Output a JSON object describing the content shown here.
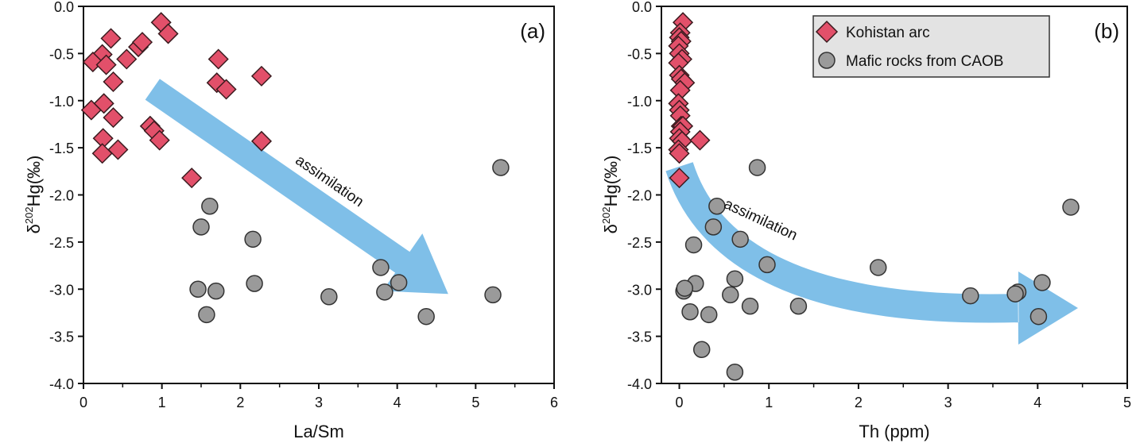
{
  "colors": {
    "kohistan_fill": "#e2506a",
    "kohistan_stroke": "#3a1a1e",
    "caob_fill": "#9a9a9a",
    "caob_stroke": "#333333",
    "arrow": "#7fbfe8",
    "legend_bg": "#e3e3e3"
  },
  "legend": {
    "items": [
      {
        "label": "Kohistan arc",
        "marker": "diamond"
      },
      {
        "label": "Mafic rocks from CAOB",
        "marker": "circle"
      }
    ]
  },
  "chart_data": [
    {
      "type": "scatter",
      "panel_label": "(a)",
      "xlabel": "La/Sm",
      "ylabel": "δ202Hg(‰)",
      "ylabel_parts": {
        "main": "δ",
        "sup": "202",
        "rest": "Hg(‰)"
      },
      "xlim": [
        0,
        6
      ],
      "ylim": [
        -4.0,
        0.0
      ],
      "xticks": [
        "0",
        "1",
        "2",
        "3",
        "4",
        "5",
        "6"
      ],
      "xtick_values": [
        0,
        1,
        2,
        3,
        4,
        5,
        6
      ],
      "yticks": [
        "0.0",
        "-0.5",
        "-1.0",
        "-1.5",
        "-2.0",
        "-2.5",
        "-3.0",
        "-3.5",
        "-4.0"
      ],
      "ytick_values": [
        0,
        -0.5,
        -1.0,
        -1.5,
        -2.0,
        -2.5,
        -3.0,
        -3.5,
        -4.0
      ],
      "annotation": {
        "text": "assimilation",
        "arrow": "straight",
        "from": [
          0.88,
          -0.88
        ],
        "to": [
          4.65,
          -3.05
        ]
      },
      "series": [
        {
          "name": "Kohistan arc",
          "marker": "diamond",
          "points": [
            [
              0.99,
              -0.17
            ],
            [
              1.08,
              -0.29
            ],
            [
              0.35,
              -0.34
            ],
            [
              0.24,
              -0.51
            ],
            [
              0.12,
              -0.59
            ],
            [
              0.29,
              -0.62
            ],
            [
              0.55,
              -0.56
            ],
            [
              0.7,
              -0.43
            ],
            [
              0.75,
              -0.38
            ],
            [
              0.38,
              -0.8
            ],
            [
              0.1,
              -1.1
            ],
            [
              0.26,
              -1.03
            ],
            [
              0.38,
              -1.18
            ],
            [
              0.85,
              -1.27
            ],
            [
              0.9,
              -1.32
            ],
            [
              0.97,
              -1.42
            ],
            [
              0.25,
              -1.4
            ],
            [
              0.44,
              -1.52
            ],
            [
              0.24,
              -1.56
            ],
            [
              1.38,
              -1.82
            ],
            [
              1.72,
              -0.56
            ],
            [
              1.7,
              -0.81
            ],
            [
              1.82,
              -0.88
            ],
            [
              2.27,
              -0.74
            ],
            [
              2.27,
              -1.43
            ]
          ]
        },
        {
          "name": "Mafic rocks from CAOB",
          "marker": "circle",
          "points": [
            [
              1.61,
              -2.12
            ],
            [
              1.5,
              -2.34
            ],
            [
              2.16,
              -2.47
            ],
            [
              1.46,
              -3.0
            ],
            [
              1.69,
              -3.02
            ],
            [
              2.18,
              -2.94
            ],
            [
              1.57,
              -3.27
            ],
            [
              3.13,
              -3.08
            ],
            [
              3.79,
              -2.77
            ],
            [
              4.02,
              -2.93
            ],
            [
              3.84,
              -3.03
            ],
            [
              4.37,
              -3.29
            ],
            [
              5.22,
              -3.06
            ],
            [
              5.32,
              -1.71
            ]
          ]
        }
      ]
    },
    {
      "type": "scatter",
      "panel_label": "(b)",
      "xlabel": "Th (ppm)",
      "ylabel": "δ202Hg(‰)",
      "ylabel_parts": {
        "main": "δ",
        "sup": "202",
        "rest": "Hg(‰)"
      },
      "xlim": [
        -0.2,
        5
      ],
      "ylim": [
        -4.0,
        0.0
      ],
      "xticks": [
        "0",
        "1",
        "2",
        "3",
        "4",
        "5"
      ],
      "xtick_values": [
        0,
        1,
        2,
        3,
        4,
        5
      ],
      "yticks": [
        "0.0",
        "-0.5",
        "-1.0",
        "-1.5",
        "-2.0",
        "-2.5",
        "-3.0",
        "-3.5",
        "-4.0"
      ],
      "ytick_values": [
        0,
        -0.5,
        -1.0,
        -1.5,
        -2.0,
        -2.5,
        -3.0,
        -3.5,
        -4.0
      ],
      "annotation": {
        "text": "assimilation",
        "arrow": "curved",
        "from": [
          0.0,
          -1.7
        ],
        "to": [
          4.45,
          -3.2
        ]
      },
      "series": [
        {
          "name": "Kohistan arc",
          "marker": "diamond",
          "points": [
            [
              0.04,
              -0.17
            ],
            [
              0.01,
              -0.28
            ],
            [
              0.0,
              -0.33
            ],
            [
              0.02,
              -0.37
            ],
            [
              -0.01,
              -0.42
            ],
            [
              0.0,
              -0.5
            ],
            [
              0.03,
              -0.56
            ],
            [
              -0.01,
              -0.6
            ],
            [
              0.0,
              -0.73
            ],
            [
              0.02,
              -0.77
            ],
            [
              0.06,
              -0.81
            ],
            [
              0.01,
              -0.89
            ],
            [
              -0.01,
              -1.03
            ],
            [
              0.0,
              -1.1
            ],
            [
              0.01,
              -1.16
            ],
            [
              0.02,
              -1.27
            ],
            [
              0.04,
              -1.27
            ],
            [
              0.01,
              -1.33
            ],
            [
              0.0,
              -1.4
            ],
            [
              0.03,
              -1.43
            ],
            [
              -0.01,
              -1.52
            ],
            [
              0.0,
              -1.56
            ],
            [
              0.23,
              -1.42
            ],
            [
              0.0,
              -1.82
            ]
          ]
        },
        {
          "name": "Mafic rocks from CAOB",
          "marker": "circle",
          "points": [
            [
              0.87,
              -1.71
            ],
            [
              0.42,
              -2.12
            ],
            [
              0.38,
              -2.34
            ],
            [
              0.16,
              -2.53
            ],
            [
              0.68,
              -2.47
            ],
            [
              0.98,
              -2.74
            ],
            [
              0.18,
              -2.94
            ],
            [
              0.62,
              -2.89
            ],
            [
              0.05,
              -3.02
            ],
            [
              0.06,
              -2.99
            ],
            [
              0.57,
              -3.06
            ],
            [
              0.12,
              -3.24
            ],
            [
              0.33,
              -3.27
            ],
            [
              0.79,
              -3.18
            ],
            [
              1.33,
              -3.18
            ],
            [
              0.25,
              -3.64
            ],
            [
              0.62,
              -3.88
            ],
            [
              2.22,
              -2.77
            ],
            [
              3.25,
              -3.07
            ],
            [
              3.78,
              -3.03
            ],
            [
              3.75,
              -3.05
            ],
            [
              4.05,
              -2.93
            ],
            [
              4.01,
              -3.29
            ],
            [
              4.37,
              -2.13
            ]
          ]
        }
      ]
    }
  ]
}
